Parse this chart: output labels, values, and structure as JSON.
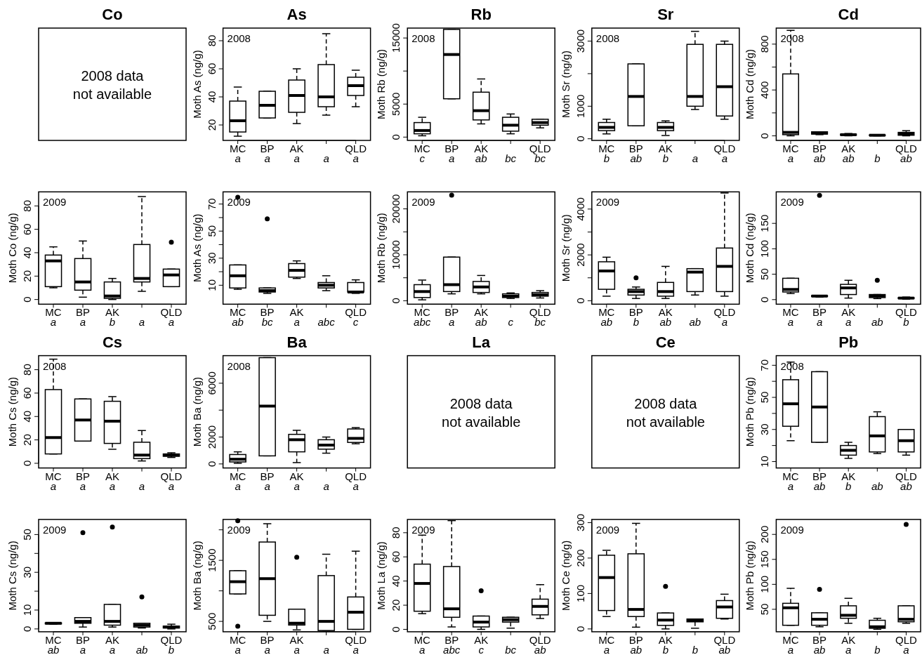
{
  "chart_data": [
    {
      "type": "other",
      "title": "Co",
      "annotations": [
        "2008 data\nnot available"
      ]
    },
    {
      "type": "box",
      "title": "As",
      "ylabel": "Moth As (ng/g)",
      "categories": [
        "MC",
        "BP",
        "AK",
        null,
        "QLD"
      ],
      "ylim": [
        9,
        89
      ],
      "yticks": [
        20,
        40,
        60,
        80
      ],
      "annotations": [
        "2008",
        "a",
        "a",
        "a",
        "a",
        "a"
      ],
      "boxes": [
        {
          "low": 12,
          "q1": 15,
          "median": 23,
          "q3": 37,
          "high": 47
        },
        {
          "low": 25,
          "q1": 25,
          "median": 34,
          "q3": 44,
          "high": 44
        },
        {
          "low": 21,
          "q1": 29,
          "median": 41,
          "q3": 52,
          "high": 60
        },
        {
          "low": 27,
          "q1": 33,
          "median": 40,
          "q3": 63,
          "high": 85
        },
        {
          "low": 33,
          "q1": 41,
          "median": 48,
          "q3": 54,
          "high": 59
        }
      ]
    },
    {
      "type": "box",
      "title": "Rb",
      "ylabel": "Moth Rb (ng/g)",
      "categories": [
        "MC",
        "BP",
        "AK",
        null,
        "QLD"
      ],
      "ylim": [
        -500,
        16500
      ],
      "yticks": [
        0,
        5000,
        {
          "value": 10000,
          "label": null
        },
        15000
      ],
      "annotations": [
        "2008",
        "c",
        "a",
        "ab",
        "bc",
        "bc"
      ],
      "boxes": [
        {
          "low": 200,
          "q1": 500,
          "median": 1000,
          "q3": 2200,
          "high": 3000
        },
        {
          "low": 5800,
          "q1": 5800,
          "median": 12500,
          "q3": 16300,
          "high": 16300
        },
        {
          "low": 2000,
          "q1": 2600,
          "median": 4000,
          "q3": 6800,
          "high": 8800
        },
        {
          "low": 500,
          "q1": 900,
          "median": 1800,
          "q3": 3000,
          "high": 3500
        },
        {
          "low": 1400,
          "q1": 1800,
          "median": 2200,
          "q3": 2700,
          "high": 2700
        }
      ]
    },
    {
      "type": "box",
      "title": "Sr",
      "ylabel": "Moth Sr (ng/g)",
      "categories": [
        "MC",
        "BP",
        "AK",
        null,
        "QLD"
      ],
      "ylim": [
        -50,
        3400
      ],
      "yticks": [
        0,
        1000,
        {
          "value": 2000,
          "label": null
        },
        3000
      ],
      "annotations": [
        "2008",
        "b",
        "ab",
        "b",
        "a",
        "a"
      ],
      "boxes": [
        {
          "low": 150,
          "q1": 250,
          "median": 350,
          "q3": 500,
          "high": 600
        },
        {
          "low": 400,
          "q1": 400,
          "median": 1300,
          "q3": 2300,
          "high": 2300
        },
        {
          "low": 100,
          "q1": 250,
          "median": 350,
          "q3": 500,
          "high": 550
        },
        {
          "low": 900,
          "q1": 1000,
          "median": 1300,
          "q3": 2900,
          "high": 3300
        },
        {
          "low": 600,
          "q1": 700,
          "median": 1600,
          "q3": 2900,
          "high": 3000
        }
      ]
    },
    {
      "type": "box",
      "title": "Cd",
      "ylabel": "Moth Cd (ng/g)",
      "categories": [
        "MC",
        "BP",
        "AK",
        null,
        "QLD"
      ],
      "ylim": [
        -40,
        940
      ],
      "yticks": [
        0,
        {
          "value": 200,
          "label": null
        },
        400,
        {
          "value": 600,
          "label": null
        },
        800
      ],
      "annotations": [
        "2008",
        "a",
        "ab",
        "ab",
        "b",
        "ab"
      ],
      "boxes": [
        {
          "low": 0,
          "q1": 10,
          "median": 30,
          "q3": 540,
          "high": 920
        },
        {
          "low": 10,
          "q1": 15,
          "median": 25,
          "q3": 35,
          "high": 35
        },
        {
          "low": 0,
          "q1": 5,
          "median": 10,
          "q3": 15,
          "high": 20
        },
        {
          "low": 0,
          "q1": 2,
          "median": 5,
          "q3": 8,
          "high": 10
        },
        {
          "low": 0,
          "q1": 5,
          "median": 15,
          "q3": 30,
          "high": 45
        }
      ]
    },
    {
      "type": "box",
      "ylabel": "Moth Co (ng/g)",
      "categories": [
        "MC",
        "BP",
        "AK",
        null,
        "QLD"
      ],
      "ylim": [
        -4,
        92
      ],
      "yticks": [
        0,
        20,
        40,
        60,
        80
      ],
      "annotations": [
        "2009",
        "a",
        "a",
        "b",
        "a",
        "a"
      ],
      "boxes": [
        {
          "low": 10,
          "q1": 11,
          "median": 33,
          "q3": 38,
          "high": 45
        },
        {
          "low": 2,
          "q1": 8,
          "median": 15,
          "q3": 35,
          "high": 50
        },
        {
          "low": 0,
          "q1": 1,
          "median": 3,
          "q3": 15,
          "high": 18
        },
        {
          "low": 7,
          "q1": 15,
          "median": 18,
          "q3": 47,
          "high": 88
        },
        {
          "low": 11,
          "q1": 11,
          "median": 21,
          "q3": 26,
          "high": 26,
          "outliers": [
            49
          ]
        }
      ]
    },
    {
      "type": "box",
      "ylabel": "Moth As (ng/g)",
      "categories": [
        "MC",
        "BP",
        "AK",
        null,
        "QLD"
      ],
      "ylim": [
        -4,
        79
      ],
      "yticks": [
        10,
        {
          "value": 20,
          "label": null
        },
        30,
        {
          "value": 40,
          "label": null
        },
        50,
        {
          "value": 60,
          "label": null
        },
        70
      ],
      "annotations": [
        "2009",
        "ab",
        "bc",
        "a",
        "abc",
        "c"
      ],
      "boxes": [
        {
          "low": 7,
          "q1": 8,
          "median": 17,
          "q3": 25,
          "high": 25,
          "outliers": [
            75
          ]
        },
        {
          "low": 4,
          "q1": 5,
          "median": 6,
          "q3": 8,
          "high": 8,
          "outliers": [
            59
          ]
        },
        {
          "low": 15,
          "q1": 16,
          "median": 21,
          "q3": 26,
          "high": 28
        },
        {
          "low": 6,
          "q1": 8,
          "median": 10,
          "q3": 12,
          "high": 17
        },
        {
          "low": 4,
          "q1": 5,
          "median": 5,
          "q3": 12,
          "high": 14
        }
      ]
    },
    {
      "type": "box",
      "ylabel": "Moth Rb (ng/g)",
      "categories": [
        "MC",
        "BP",
        "AK",
        null,
        "QLD"
      ],
      "ylim": [
        -750,
        23700
      ],
      "yticks": [
        0,
        {
          "value": 5000,
          "label": null
        },
        10000,
        {
          "value": 15000,
          "label": null
        },
        20000
      ],
      "annotations": [
        "2009",
        "abc",
        "a",
        "ab",
        "c",
        "bc"
      ],
      "boxes": [
        {
          "low": 200,
          "q1": 700,
          "median": 2000,
          "q3": 3500,
          "high": 4500
        },
        {
          "low": 1500,
          "q1": 2000,
          "median": 3500,
          "q3": 9500,
          "high": 9500,
          "outliers": [
            23000
          ]
        },
        {
          "low": 1500,
          "q1": 1800,
          "median": 3000,
          "q3": 4200,
          "high": 5500
        },
        {
          "low": 500,
          "q1": 700,
          "median": 1000,
          "q3": 1500,
          "high": 1700
        },
        {
          "low": 600,
          "q1": 1000,
          "median": 1300,
          "q3": 1800,
          "high": 2200
        }
      ]
    },
    {
      "type": "box",
      "ylabel": "Moth Sr (ng/g)",
      "categories": [
        "MC",
        "BP",
        "AK",
        null,
        "QLD"
      ],
      "ylim": [
        -150,
        4750
      ],
      "yticks": [
        0,
        {
          "value": 1000,
          "label": null
        },
        2000,
        {
          "value": 3000,
          "label": null
        },
        4000
      ],
      "annotations": [
        "2009",
        "ab",
        "b",
        "ab",
        "ab",
        "a"
      ],
      "boxes": [
        {
          "low": 200,
          "q1": 500,
          "median": 1300,
          "q3": 1700,
          "high": 1900
        },
        {
          "low": 100,
          "q1": 250,
          "median": 400,
          "q3": 500,
          "high": 600,
          "outliers": [
            1000
          ]
        },
        {
          "low": 100,
          "q1": 200,
          "median": 400,
          "q3": 800,
          "high": 1500
        },
        {
          "low": 250,
          "q1": 400,
          "median": 1250,
          "q3": 1400,
          "high": 1400
        },
        {
          "low": 200,
          "q1": 400,
          "median": 1500,
          "q3": 2300,
          "high": 4700
        }
      ]
    },
    {
      "type": "box",
      "ylabel": "Moth Cd (ng/g)",
      "categories": [
        "MC",
        "BP",
        "AK",
        null,
        "QLD"
      ],
      "ylim": [
        -9,
        212
      ],
      "yticks": [
        0,
        50,
        100,
        150
      ],
      "annotations": [
        "2009",
        "a",
        "a",
        "a",
        "ab",
        "b"
      ],
      "boxes": [
        {
          "low": 12,
          "q1": 15,
          "median": 20,
          "q3": 42,
          "high": 42
        },
        {
          "low": 5,
          "q1": 6,
          "median": 7,
          "q3": 8,
          "high": 8,
          "outliers": [
            205
          ]
        },
        {
          "low": 3,
          "q1": 10,
          "median": 23,
          "q3": 30,
          "high": 38
        },
        {
          "low": 2,
          "q1": 4,
          "median": 7,
          "q3": 10,
          "high": 10,
          "outliers": [
            38
          ]
        },
        {
          "low": 1,
          "q1": 2,
          "median": 3,
          "q3": 4,
          "high": 5
        }
      ]
    },
    {
      "type": "box",
      "title": "Cs",
      "ylabel": "Moth Cs (ng/g)",
      "categories": [
        "MC",
        "BP",
        "AK",
        null,
        "QLD"
      ],
      "ylim": [
        -4,
        92
      ],
      "yticks": [
        0,
        20,
        40,
        60,
        80
      ],
      "annotations": [
        "2008",
        "a",
        "a",
        "a",
        "a",
        "a"
      ],
      "boxes": [
        {
          "low": 8,
          "q1": 8,
          "median": 22,
          "q3": 63,
          "high": 89
        },
        {
          "low": 19,
          "q1": 19,
          "median": 37,
          "q3": 55,
          "high": 55
        },
        {
          "low": 12,
          "q1": 17,
          "median": 36,
          "q3": 53,
          "high": 57
        },
        {
          "low": 2,
          "q1": 4,
          "median": 7,
          "q3": 18,
          "high": 28
        },
        {
          "low": 5,
          "q1": 6,
          "median": 7,
          "q3": 8,
          "high": 9
        }
      ]
    },
    {
      "type": "box",
      "title": "Ba",
      "ylabel": "Moth Ba (ng/g)",
      "categories": [
        "MC",
        "BP",
        "AK",
        null,
        "QLD"
      ],
      "ylim": [
        -300,
        8050
      ],
      "yticks": [
        0,
        2000,
        {
          "value": 4000,
          "label": null
        },
        6000
      ],
      "annotations": [
        "2008",
        "a",
        "a",
        "a",
        "a",
        "a"
      ],
      "boxes": [
        {
          "low": 50,
          "q1": 150,
          "median": 350,
          "q3": 700,
          "high": 900
        },
        {
          "low": 600,
          "q1": 600,
          "median": 4300,
          "q3": 7900,
          "high": 7900
        },
        {
          "low": 100,
          "q1": 900,
          "median": 1800,
          "q3": 2200,
          "high": 2500
        },
        {
          "low": 800,
          "q1": 1100,
          "median": 1400,
          "q3": 1800,
          "high": 2000
        },
        {
          "low": 1500,
          "q1": 1600,
          "median": 1900,
          "q3": 2600,
          "high": 2700
        }
      ]
    },
    {
      "type": "other",
      "title": "La",
      "annotations": [
        "2008 data\nnot available"
      ]
    },
    {
      "type": "other",
      "title": "Ce",
      "annotations": [
        "2008 data\nnot available"
      ]
    },
    {
      "type": "box",
      "title": "Pb",
      "ylabel": "Moth Pb (ng/g)",
      "categories": [
        "MC",
        "BP",
        "AK",
        null,
        "QLD"
      ],
      "ylim": [
        6,
        76
      ],
      "yticks": [
        10,
        {
          "value": 20,
          "label": null
        },
        30,
        {
          "value": 40,
          "label": null
        },
        50,
        {
          "value": 60,
          "label": null
        },
        70
      ],
      "annotations": [
        "2008",
        "a",
        "ab",
        "b",
        "ab",
        "ab"
      ],
      "boxes": [
        {
          "low": 23,
          "q1": 32,
          "median": 46,
          "q3": 61,
          "high": 72
        },
        {
          "low": 22,
          "q1": 22,
          "median": 44,
          "q3": 66,
          "high": 66
        },
        {
          "low": 12,
          "q1": 14,
          "median": 17,
          "q3": 20,
          "high": 22
        },
        {
          "low": 15,
          "q1": 16,
          "median": 26,
          "q3": 38,
          "high": 41
        },
        {
          "low": 14,
          "q1": 16,
          "median": 23,
          "q3": 30,
          "high": 30
        }
      ]
    },
    {
      "type": "box",
      "ylabel": "Moth Cs (ng/g)",
      "categories": [
        "MC",
        "BP",
        "AK",
        null,
        "QLD"
      ],
      "ylim": [
        -1.5,
        58
      ],
      "yticks": [
        0,
        10,
        {
          "value": 20,
          "label": null
        },
        30,
        {
          "value": 40,
          "label": null
        },
        50
      ],
      "annotations": [
        "2009",
        "ab",
        "a",
        "a",
        "ab",
        "b"
      ],
      "boxes": [
        {
          "low": 2.5,
          "q1": 2.7,
          "median": 3,
          "q3": 3.2,
          "high": 3.3
        },
        {
          "low": 1,
          "q1": 3,
          "median": 4,
          "q3": 6,
          "high": 6,
          "outliers": [
            51
          ]
        },
        {
          "low": 1,
          "q1": 2,
          "median": 4,
          "q3": 13,
          "high": 13,
          "outliers": [
            54
          ]
        },
        {
          "low": 0.5,
          "q1": 1,
          "median": 2,
          "q3": 3,
          "high": 3,
          "outliers": [
            17
          ]
        },
        {
          "low": 0,
          "q1": 0.5,
          "median": 1,
          "q3": 1.5,
          "high": 2.5
        }
      ]
    },
    {
      "type": "box",
      "ylabel": "Moth Ba (ng/g)",
      "categories": [
        "MC",
        "BP",
        "AK",
        null,
        "QLD"
      ],
      "ylim": [
        330,
        2170
      ],
      "yticks": [
        500,
        {
          "value": 1000,
          "label": null
        },
        1500,
        {
          "value": 2000,
          "label": null
        }
      ],
      "annotations": [
        "2009",
        "a",
        "a",
        "a",
        "a",
        "a"
      ],
      "boxes": [
        {
          "low": 950,
          "q1": 950,
          "median": 1150,
          "q3": 1330,
          "high": 1330,
          "outliers": [
            2150,
            420
          ]
        },
        {
          "low": 500,
          "q1": 600,
          "median": 1200,
          "q3": 1800,
          "high": 2100
        },
        {
          "low": 360,
          "q1": 440,
          "median": 470,
          "q3": 700,
          "high": 700,
          "outliers": [
            1550
          ]
        },
        {
          "low": 350,
          "q1": 350,
          "median": 500,
          "q3": 1250,
          "high": 1600
        },
        {
          "low": 370,
          "q1": 370,
          "median": 650,
          "q3": 900,
          "high": 1650
        }
      ]
    },
    {
      "type": "box",
      "title": null,
      "ylabel": "Moth La (ng/g)",
      "categories": [
        "MC",
        "BP",
        "AK",
        null,
        "QLD"
      ],
      "ylim": [
        -2,
        91
      ],
      "yticks": [
        0,
        20,
        40,
        60,
        80
      ],
      "annotations": [
        "2009",
        "a",
        "abc",
        "c",
        "bc",
        "ab"
      ],
      "boxes": [
        {
          "low": 13,
          "q1": 15,
          "median": 38,
          "q3": 54,
          "high": 78
        },
        {
          "low": 2,
          "q1": 10,
          "median": 17,
          "q3": 52,
          "high": 90
        },
        {
          "low": 0,
          "q1": 2,
          "median": 6,
          "q3": 11,
          "high": 11,
          "outliers": [
            32
          ]
        },
        {
          "low": 1,
          "q1": 6,
          "median": 8,
          "q3": 10,
          "high": 10
        },
        {
          "low": 9,
          "q1": 12,
          "median": 19,
          "q3": 25,
          "high": 37
        }
      ]
    },
    {
      "type": "box",
      "ylabel": "Moth Ce (ng/g)",
      "categories": [
        "MC",
        "BP",
        "AK",
        null,
        "QLD"
      ],
      "ylim": [
        -8,
        309
      ],
      "yticks": [
        0,
        100,
        200,
        300
      ],
      "annotations": [
        "2009",
        "a",
        "ab",
        "b",
        "b",
        "ab"
      ],
      "boxes": [
        {
          "low": 35,
          "q1": 52,
          "median": 145,
          "q3": 208,
          "high": 222
        },
        {
          "low": 5,
          "q1": 35,
          "median": 55,
          "q3": 212,
          "high": 298
        },
        {
          "low": 0,
          "q1": 10,
          "median": 25,
          "q3": 45,
          "high": 45,
          "outliers": [
            120
          ]
        },
        {
          "low": 2,
          "q1": 20,
          "median": 25,
          "q3": 28,
          "high": 28
        },
        {
          "low": 28,
          "q1": 30,
          "median": 62,
          "q3": 80,
          "high": 98
        }
      ]
    },
    {
      "type": "box",
      "ylabel": "Moth Pb (ng/g)",
      "categories": [
        "MC",
        "BP",
        "AK",
        null,
        "QLD"
      ],
      "ylim": [
        5,
        230
      ],
      "yticks": [
        50,
        100,
        150,
        200
      ],
      "annotations": [
        "2009",
        "a",
        "ab",
        "a",
        "b",
        "a"
      ],
      "boxes": [
        {
          "low": 18,
          "q1": 18,
          "median": 53,
          "q3": 62,
          "high": 92
        },
        {
          "low": 15,
          "q1": 18,
          "median": 30,
          "q3": 43,
          "high": 43,
          "outliers": [
            90
          ]
        },
        {
          "low": 22,
          "q1": 32,
          "median": 38,
          "q3": 57,
          "high": 72
        },
        {
          "low": 10,
          "q1": 12,
          "median": 15,
          "q3": 28,
          "high": 32
        },
        {
          "low": 22,
          "q1": 25,
          "median": 30,
          "q3": 57,
          "high": 57,
          "outliers": [
            220
          ]
        }
      ]
    }
  ]
}
